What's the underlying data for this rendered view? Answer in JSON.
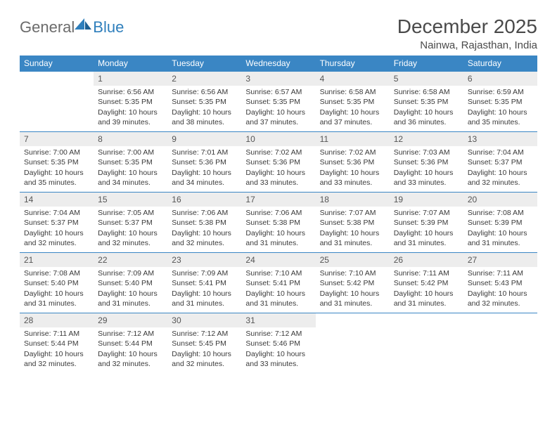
{
  "brand": {
    "general": "General",
    "blue": "Blue"
  },
  "title": "December 2025",
  "location": "Nainwa, Rajasthan, India",
  "header_color": "#3a86c4",
  "daynum_bg": "#ededed",
  "row_border": "#3a86c4",
  "weekdays": [
    "Sunday",
    "Monday",
    "Tuesday",
    "Wednesday",
    "Thursday",
    "Friday",
    "Saturday"
  ],
  "weeks": [
    [
      null,
      {
        "d": "1",
        "sr": "Sunrise: 6:56 AM",
        "ss": "Sunset: 5:35 PM",
        "dl1": "Daylight: 10 hours",
        "dl2": "and 39 minutes."
      },
      {
        "d": "2",
        "sr": "Sunrise: 6:56 AM",
        "ss": "Sunset: 5:35 PM",
        "dl1": "Daylight: 10 hours",
        "dl2": "and 38 minutes."
      },
      {
        "d": "3",
        "sr": "Sunrise: 6:57 AM",
        "ss": "Sunset: 5:35 PM",
        "dl1": "Daylight: 10 hours",
        "dl2": "and 37 minutes."
      },
      {
        "d": "4",
        "sr": "Sunrise: 6:58 AM",
        "ss": "Sunset: 5:35 PM",
        "dl1": "Daylight: 10 hours",
        "dl2": "and 37 minutes."
      },
      {
        "d": "5",
        "sr": "Sunrise: 6:58 AM",
        "ss": "Sunset: 5:35 PM",
        "dl1": "Daylight: 10 hours",
        "dl2": "and 36 minutes."
      },
      {
        "d": "6",
        "sr": "Sunrise: 6:59 AM",
        "ss": "Sunset: 5:35 PM",
        "dl1": "Daylight: 10 hours",
        "dl2": "and 35 minutes."
      }
    ],
    [
      {
        "d": "7",
        "sr": "Sunrise: 7:00 AM",
        "ss": "Sunset: 5:35 PM",
        "dl1": "Daylight: 10 hours",
        "dl2": "and 35 minutes."
      },
      {
        "d": "8",
        "sr": "Sunrise: 7:00 AM",
        "ss": "Sunset: 5:35 PM",
        "dl1": "Daylight: 10 hours",
        "dl2": "and 34 minutes."
      },
      {
        "d": "9",
        "sr": "Sunrise: 7:01 AM",
        "ss": "Sunset: 5:36 PM",
        "dl1": "Daylight: 10 hours",
        "dl2": "and 34 minutes."
      },
      {
        "d": "10",
        "sr": "Sunrise: 7:02 AM",
        "ss": "Sunset: 5:36 PM",
        "dl1": "Daylight: 10 hours",
        "dl2": "and 33 minutes."
      },
      {
        "d": "11",
        "sr": "Sunrise: 7:02 AM",
        "ss": "Sunset: 5:36 PM",
        "dl1": "Daylight: 10 hours",
        "dl2": "and 33 minutes."
      },
      {
        "d": "12",
        "sr": "Sunrise: 7:03 AM",
        "ss": "Sunset: 5:36 PM",
        "dl1": "Daylight: 10 hours",
        "dl2": "and 33 minutes."
      },
      {
        "d": "13",
        "sr": "Sunrise: 7:04 AM",
        "ss": "Sunset: 5:37 PM",
        "dl1": "Daylight: 10 hours",
        "dl2": "and 32 minutes."
      }
    ],
    [
      {
        "d": "14",
        "sr": "Sunrise: 7:04 AM",
        "ss": "Sunset: 5:37 PM",
        "dl1": "Daylight: 10 hours",
        "dl2": "and 32 minutes."
      },
      {
        "d": "15",
        "sr": "Sunrise: 7:05 AM",
        "ss": "Sunset: 5:37 PM",
        "dl1": "Daylight: 10 hours",
        "dl2": "and 32 minutes."
      },
      {
        "d": "16",
        "sr": "Sunrise: 7:06 AM",
        "ss": "Sunset: 5:38 PM",
        "dl1": "Daylight: 10 hours",
        "dl2": "and 32 minutes."
      },
      {
        "d": "17",
        "sr": "Sunrise: 7:06 AM",
        "ss": "Sunset: 5:38 PM",
        "dl1": "Daylight: 10 hours",
        "dl2": "and 31 minutes."
      },
      {
        "d": "18",
        "sr": "Sunrise: 7:07 AM",
        "ss": "Sunset: 5:38 PM",
        "dl1": "Daylight: 10 hours",
        "dl2": "and 31 minutes."
      },
      {
        "d": "19",
        "sr": "Sunrise: 7:07 AM",
        "ss": "Sunset: 5:39 PM",
        "dl1": "Daylight: 10 hours",
        "dl2": "and 31 minutes."
      },
      {
        "d": "20",
        "sr": "Sunrise: 7:08 AM",
        "ss": "Sunset: 5:39 PM",
        "dl1": "Daylight: 10 hours",
        "dl2": "and 31 minutes."
      }
    ],
    [
      {
        "d": "21",
        "sr": "Sunrise: 7:08 AM",
        "ss": "Sunset: 5:40 PM",
        "dl1": "Daylight: 10 hours",
        "dl2": "and 31 minutes."
      },
      {
        "d": "22",
        "sr": "Sunrise: 7:09 AM",
        "ss": "Sunset: 5:40 PM",
        "dl1": "Daylight: 10 hours",
        "dl2": "and 31 minutes."
      },
      {
        "d": "23",
        "sr": "Sunrise: 7:09 AM",
        "ss": "Sunset: 5:41 PM",
        "dl1": "Daylight: 10 hours",
        "dl2": "and 31 minutes."
      },
      {
        "d": "24",
        "sr": "Sunrise: 7:10 AM",
        "ss": "Sunset: 5:41 PM",
        "dl1": "Daylight: 10 hours",
        "dl2": "and 31 minutes."
      },
      {
        "d": "25",
        "sr": "Sunrise: 7:10 AM",
        "ss": "Sunset: 5:42 PM",
        "dl1": "Daylight: 10 hours",
        "dl2": "and 31 minutes."
      },
      {
        "d": "26",
        "sr": "Sunrise: 7:11 AM",
        "ss": "Sunset: 5:42 PM",
        "dl1": "Daylight: 10 hours",
        "dl2": "and 31 minutes."
      },
      {
        "d": "27",
        "sr": "Sunrise: 7:11 AM",
        "ss": "Sunset: 5:43 PM",
        "dl1": "Daylight: 10 hours",
        "dl2": "and 32 minutes."
      }
    ],
    [
      {
        "d": "28",
        "sr": "Sunrise: 7:11 AM",
        "ss": "Sunset: 5:44 PM",
        "dl1": "Daylight: 10 hours",
        "dl2": "and 32 minutes."
      },
      {
        "d": "29",
        "sr": "Sunrise: 7:12 AM",
        "ss": "Sunset: 5:44 PM",
        "dl1": "Daylight: 10 hours",
        "dl2": "and 32 minutes."
      },
      {
        "d": "30",
        "sr": "Sunrise: 7:12 AM",
        "ss": "Sunset: 5:45 PM",
        "dl1": "Daylight: 10 hours",
        "dl2": "and 32 minutes."
      },
      {
        "d": "31",
        "sr": "Sunrise: 7:12 AM",
        "ss": "Sunset: 5:46 PM",
        "dl1": "Daylight: 10 hours",
        "dl2": "and 33 minutes."
      },
      null,
      null,
      null
    ]
  ]
}
